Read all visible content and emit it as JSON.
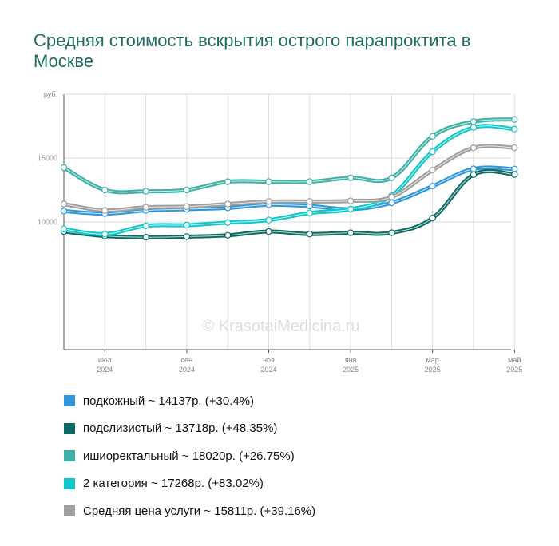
{
  "title": "Средняя стоимость вскрытия острого парапроктита в Москве",
  "watermark": "© KrasotaiMedicina.ru",
  "chart_data": {
    "type": "line",
    "title": "Средняя стоимость вскрытия острого парапроктита в Москве",
    "ylabel": "руб.",
    "ylim": [
      0,
      20000
    ],
    "yticks": [
      {
        "value": 10000,
        "label": "10000"
      },
      {
        "value": 15000,
        "label": "15000"
      },
      {
        "value": 20000,
        "label": "руб."
      }
    ],
    "xticks": [
      {
        "month": "июл",
        "year": "2024"
      },
      {
        "month": "сен",
        "year": "2024"
      },
      {
        "month": "ноя",
        "year": "2024"
      },
      {
        "month": "янв",
        "year": "2025"
      },
      {
        "month": "мар",
        "year": "2025"
      },
      {
        "month": "май",
        "year": "2025"
      }
    ],
    "x": [
      "2024-06",
      "2024-07",
      "2024-08",
      "2024-09",
      "2024-10",
      "2024-11",
      "2024-12",
      "2025-01",
      "2025-02",
      "2025-03",
      "2025-04",
      "2025-05"
    ],
    "grid": true,
    "legend_position": "bottom",
    "series": [
      {
        "name": "подкожный ~ 14137р. (+30.4%)",
        "color": "#2e97d9",
        "values": [
          10850,
          10650,
          10900,
          11000,
          11100,
          11350,
          11250,
          11000,
          11500,
          12800,
          14150,
          14137
        ]
      },
      {
        "name": "подслизистый ~ 13718р. (+48.35%)",
        "color": "#0e6b63",
        "values": [
          9250,
          8900,
          8800,
          8850,
          8950,
          9250,
          9050,
          9150,
          9150,
          10300,
          13700,
          13718
        ]
      },
      {
        "name": "ишиоректальный ~ 18020р. (+26.75%)",
        "color": "#3fb0a4",
        "values": [
          14250,
          12500,
          12400,
          12500,
          13150,
          13150,
          13150,
          13450,
          13450,
          16700,
          17850,
          18020
        ]
      },
      {
        "name": "2 категория ~ 17268р. (+83.02%)",
        "color": "#11c6c6",
        "values": [
          9450,
          9050,
          9700,
          9750,
          9950,
          10150,
          10700,
          11000,
          12050,
          15500,
          17400,
          17268
        ]
      },
      {
        "name": "Средняя цена услуги ~ 15811р. (+39.16%)",
        "color": "#9e9e9e",
        "values": [
          11400,
          10900,
          11150,
          11200,
          11400,
          11600,
          11600,
          11650,
          11950,
          14050,
          15800,
          15811
        ]
      }
    ]
  }
}
